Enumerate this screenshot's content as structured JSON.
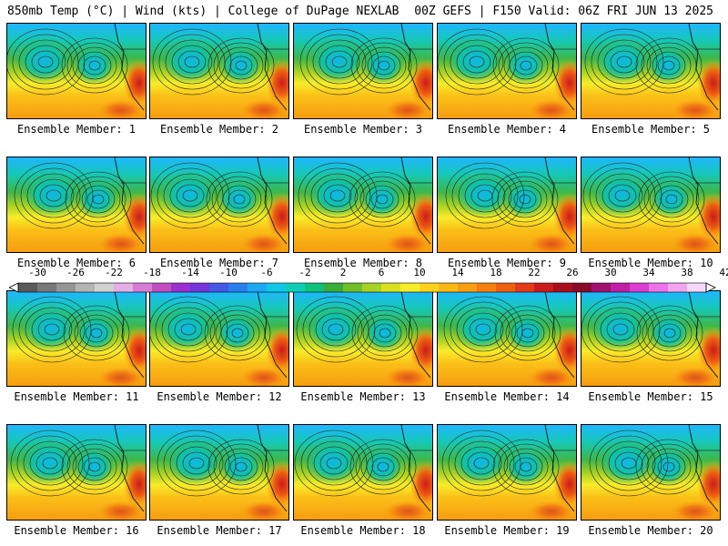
{
  "header": {
    "left": "850mb Temp (°C) | Wind (kts) | College of DuPage NEXLAB",
    "right": "00Z GEFS | F150 Valid: 06Z FRI JUN 13 2025"
  },
  "panels": [
    {
      "label": "Ensemble Member: 1"
    },
    {
      "label": "Ensemble Member: 2"
    },
    {
      "label": "Ensemble Member: 3"
    },
    {
      "label": "Ensemble Member: 4"
    },
    {
      "label": "Ensemble Member: 5"
    },
    {
      "label": "Ensemble Member: 6"
    },
    {
      "label": "Ensemble Member: 7"
    },
    {
      "label": "Ensemble Member: 8"
    },
    {
      "label": "Ensemble Member: 9"
    },
    {
      "label": "Ensemble Member: 10"
    },
    {
      "label": "Ensemble Member: 11"
    },
    {
      "label": "Ensemble Member: 12"
    },
    {
      "label": "Ensemble Member: 13"
    },
    {
      "label": "Ensemble Member: 14"
    },
    {
      "label": "Ensemble Member: 15"
    },
    {
      "label": "Ensemble Member: 16"
    },
    {
      "label": "Ensemble Member: 17"
    },
    {
      "label": "Ensemble Member: 18"
    },
    {
      "label": "Ensemble Member: 19"
    },
    {
      "label": "Ensemble Member: 20"
    }
  ],
  "colorbar": {
    "ticks": [
      "-30",
      "-26",
      "-22",
      "-18",
      "-14",
      "-10",
      "-6",
      "-2",
      "2",
      "6",
      "10",
      "14",
      "18",
      "22",
      "26",
      "30",
      "34",
      "38",
      "42"
    ],
    "colors": [
      "#5a5a5a",
      "#787878",
      "#969696",
      "#b4b4b4",
      "#d2d2d2",
      "#e6aee6",
      "#d67ed6",
      "#c04ec0",
      "#9b2fcf",
      "#7436d9",
      "#4658e6",
      "#2a7fee",
      "#1aa8f2",
      "#10c7e8",
      "#0ccfb6",
      "#0fc07f",
      "#3aac3a",
      "#6fbe2a",
      "#a8d224",
      "#d8e11c",
      "#f8ec2a",
      "#fcd21c",
      "#fbb815",
      "#f99d11",
      "#f5800e",
      "#ef5f12",
      "#e33a18",
      "#c91c1c",
      "#a80f1e",
      "#8a0a2a",
      "#a01270",
      "#c21ea6",
      "#dd3ed1",
      "#ec74e6",
      "#f3a6f0",
      "#f8d8f8"
    ]
  }
}
